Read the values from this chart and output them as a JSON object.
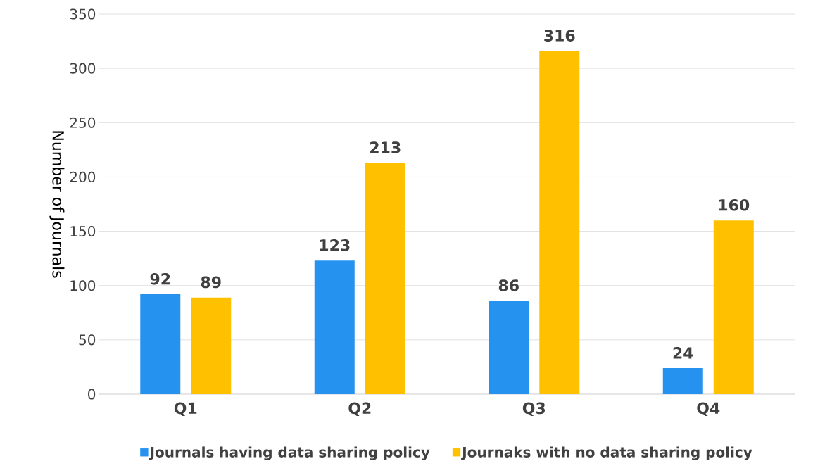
{
  "chart_data": {
    "type": "bar",
    "ylabel": "Number of Journals",
    "categories": [
      "Q1",
      "Q2",
      "Q3",
      "Q4"
    ],
    "series": [
      {
        "name": "Journals having data sharing policy",
        "color": "#2592f0",
        "values": [
          92,
          123,
          86,
          24
        ]
      },
      {
        "name": "Journaks with no data sharing policy",
        "color": "#ffc000",
        "values": [
          89,
          213,
          316,
          160
        ]
      }
    ],
    "ylim": [
      0,
      350
    ],
    "yticks": [
      0,
      50,
      100,
      150,
      200,
      250,
      300,
      350
    ],
    "grid": "y",
    "legend": "bottom",
    "data_labels": true
  }
}
